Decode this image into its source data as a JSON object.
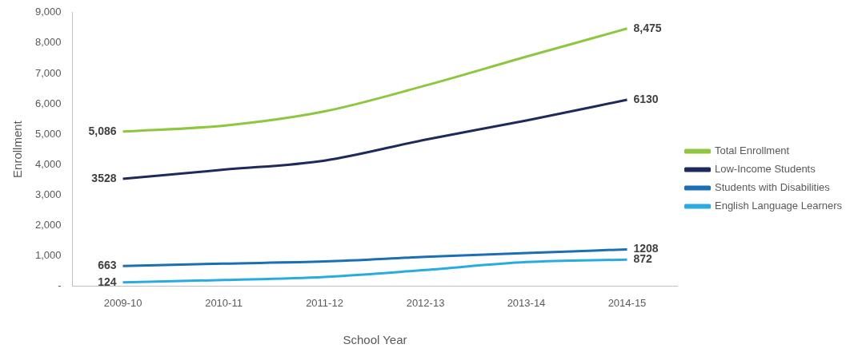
{
  "chart_data": {
    "type": "line",
    "xlabel": "School Year",
    "ylabel": "Enrollment",
    "categories": [
      "2009-10",
      "2010-11",
      "2011-12",
      "2012-13",
      "2013-14",
      "2014-15"
    ],
    "series": [
      {
        "name": "Total Enrollment",
        "color": "#8dc63f",
        "values": [
          5086,
          5280,
          5750,
          6600,
          7550,
          8475
        ],
        "value_labels": [
          "5,086",
          null,
          null,
          null,
          null,
          "8,475"
        ]
      },
      {
        "name": "Low-Income Students",
        "color": "#1f2a5c",
        "values": [
          3528,
          3830,
          4130,
          4820,
          5450,
          6130
        ],
        "value_labels": [
          "3528",
          null,
          null,
          null,
          null,
          "6130"
        ]
      },
      {
        "name": "Students with Disabilities",
        "color": "#1a6fb5",
        "values": [
          663,
          740,
          810,
          960,
          1090,
          1208
        ],
        "value_labels": [
          "663",
          null,
          null,
          null,
          null,
          "1208"
        ]
      },
      {
        "name": "English Language Learners",
        "color": "#29abe2",
        "values": [
          124,
          200,
          300,
          530,
          790,
          872
        ],
        "value_labels": [
          "124",
          null,
          null,
          null,
          null,
          "872"
        ]
      }
    ],
    "ylim": [
      0,
      9000
    ],
    "yticks": [
      {
        "value": 0,
        "label": "-"
      },
      {
        "value": 1000,
        "label": "1,000"
      },
      {
        "value": 2000,
        "label": "2,000"
      },
      {
        "value": 3000,
        "label": "3,000"
      },
      {
        "value": 4000,
        "label": "4,000"
      },
      {
        "value": 5000,
        "label": "5,000"
      },
      {
        "value": 6000,
        "label": "6,000"
      },
      {
        "value": 7000,
        "label": "7,000"
      },
      {
        "value": 8000,
        "label": "8,000"
      },
      {
        "value": 9000,
        "label": "9,000"
      }
    ],
    "grid": false,
    "legend": "right",
    "marker": "none",
    "line_style": "solid"
  }
}
